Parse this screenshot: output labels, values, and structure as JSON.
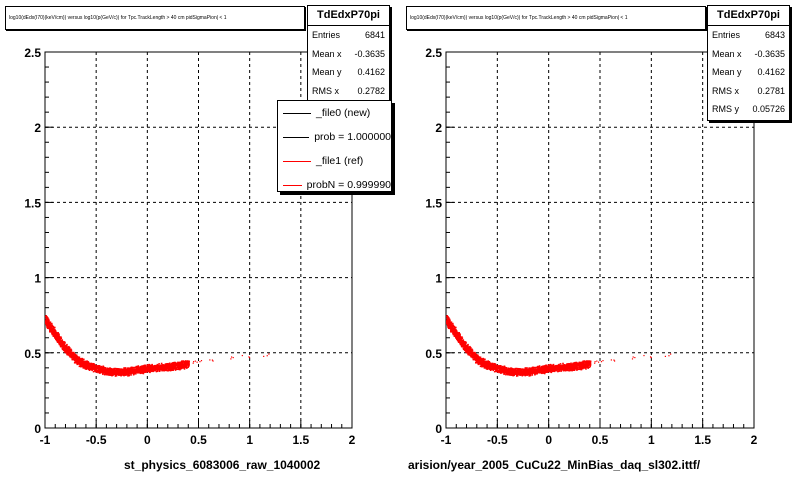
{
  "chart_data": [
    {
      "type": "scatter",
      "title": "log10(dEdx(I70)(keV/cm)) versus log10(p(GeV/c)) for Tpc.TrackLength > 40 cm pidSigmaPion| < 1",
      "xlabel": "st_physics_6083006_raw_1040002",
      "ylabel": "",
      "xlim": [
        -1,
        2
      ],
      "ylim": [
        0,
        2.5
      ],
      "xticks": [
        "-1",
        "-0.5",
        "0",
        "0.5",
        "1",
        "1.5",
        "2"
      ],
      "yticks": [
        "0",
        "0.5",
        "1",
        "1.5",
        "2",
        "2.5"
      ],
      "grid": true,
      "stats": {
        "name": "TdEdxP70pi",
        "rows": [
          {
            "label": "Entries",
            "value": "6841"
          },
          {
            "label": "Mean x",
            "value": "-0.3635"
          },
          {
            "label": "Mean y",
            "value": "0.4162"
          },
          {
            "label": "RMS x",
            "value": "0.2782"
          }
        ]
      },
      "legend": {
        "position": "top-right",
        "entries": [
          {
            "label": "_file0 (new)",
            "color": "#000000"
          },
          {
            "label": "prob = 1.000000",
            "color": "#000000"
          },
          {
            "label": "_file1 (ref)",
            "color": "#ff0000"
          },
          {
            "label": "probN = 0.999990",
            "color": "#ff0000"
          }
        ]
      },
      "series": [
        {
          "color": "#ff0000",
          "band": [
            [
              -1.0,
              0.72
            ],
            [
              -0.9,
              0.62
            ],
            [
              -0.8,
              0.53
            ],
            [
              -0.7,
              0.46
            ],
            [
              -0.6,
              0.42
            ],
            [
              -0.5,
              0.4
            ],
            [
              -0.4,
              0.38
            ],
            [
              -0.3,
              0.375
            ],
            [
              -0.2,
              0.38
            ],
            [
              -0.1,
              0.39
            ],
            [
              0.0,
              0.4
            ],
            [
              0.1,
              0.405
            ],
            [
              0.2,
              0.41
            ],
            [
              0.3,
              0.42
            ],
            [
              0.4,
              0.43
            ]
          ],
          "sparse": [
            [
              0.45,
              0.44
            ],
            [
              0.5,
              0.45
            ],
            [
              0.6,
              0.45
            ],
            [
              0.8,
              0.47
            ],
            [
              0.95,
              0.48
            ],
            [
              1.15,
              0.49
            ]
          ]
        }
      ]
    },
    {
      "type": "scatter",
      "title": "log10(dEdx(I70)(keV/cm)) versus log10(p(GeV/c)) for Tpc.TrackLength > 40 cm pidSigmaPion| < 1",
      "xlabel": "arision/year_2005_CuCu22_MinBias_daq_sl302.ittf/",
      "ylabel": "",
      "xlim": [
        -1,
        2
      ],
      "ylim": [
        0,
        2.5
      ],
      "xticks": [
        "-1",
        "-0.5",
        "0",
        "0.5",
        "1",
        "1.5",
        "2"
      ],
      "yticks": [
        "0",
        "0.5",
        "1",
        "1.5",
        "2",
        "2.5"
      ],
      "grid": true,
      "stats": {
        "name": "TdEdxP70pi",
        "rows": [
          {
            "label": "Entries",
            "value": "6843"
          },
          {
            "label": "Mean x",
            "value": "-0.3635"
          },
          {
            "label": "Mean y",
            "value": "0.4162"
          },
          {
            "label": "RMS x",
            "value": "0.2781"
          },
          {
            "label": "RMS y",
            "value": "0.05726"
          }
        ]
      },
      "series": [
        {
          "color": "#ff0000",
          "band": [
            [
              -1.0,
              0.72
            ],
            [
              -0.9,
              0.62
            ],
            [
              -0.8,
              0.53
            ],
            [
              -0.7,
              0.46
            ],
            [
              -0.6,
              0.42
            ],
            [
              -0.5,
              0.4
            ],
            [
              -0.4,
              0.38
            ],
            [
              -0.3,
              0.375
            ],
            [
              -0.2,
              0.38
            ],
            [
              -0.1,
              0.39
            ],
            [
              0.0,
              0.4
            ],
            [
              0.1,
              0.405
            ],
            [
              0.2,
              0.41
            ],
            [
              0.3,
              0.42
            ],
            [
              0.4,
              0.43
            ]
          ],
          "sparse": [
            [
              0.45,
              0.44
            ],
            [
              0.5,
              0.45
            ],
            [
              0.6,
              0.45
            ],
            [
              0.8,
              0.47
            ],
            [
              0.95,
              0.48
            ],
            [
              1.15,
              0.49
            ]
          ]
        }
      ]
    }
  ]
}
